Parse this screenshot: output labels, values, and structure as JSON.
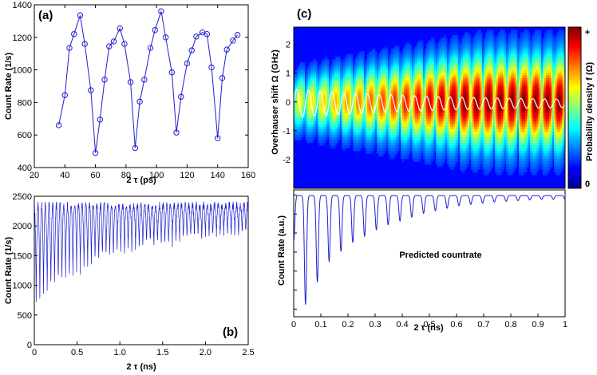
{
  "colors": {
    "series": "#1f1fd0",
    "white_trace": "#ffffff",
    "letter_box": "#ffffff"
  },
  "chart_data": [
    {
      "id": "a",
      "type": "line",
      "panel_label": "(a)",
      "xlabel": "2 τ   (ps)",
      "ylabel": "Count Rate (1/s)",
      "xlim": [
        20,
        160
      ],
      "ylim": [
        400,
        1400
      ],
      "xticks": [
        20,
        40,
        60,
        80,
        100,
        120,
        140,
        160
      ],
      "yticks": [
        400,
        600,
        800,
        1000,
        1200,
        1400
      ],
      "markers": "circle",
      "x": [
        36,
        40,
        43,
        46,
        50,
        53,
        57,
        60,
        63,
        66,
        69,
        72,
        76,
        79,
        83,
        86,
        89,
        92,
        96,
        99,
        103,
        106,
        110,
        113,
        116,
        120,
        123,
        126,
        130,
        133,
        136,
        140,
        143,
        146,
        150,
        153
      ],
      "y": [
        660,
        845,
        1135,
        1220,
        1335,
        1160,
        875,
        490,
        695,
        940,
        1145,
        1175,
        1255,
        1160,
        925,
        520,
        805,
        940,
        1135,
        1245,
        1360,
        1200,
        985,
        615,
        835,
        1040,
        1120,
        1205,
        1230,
        1220,
        1015,
        580,
        950,
        1125,
        1180,
        1215
      ]
    },
    {
      "id": "b",
      "type": "line",
      "panel_label": "(b)",
      "xlabel": "2 τ   (ns)",
      "ylabel": "Count Rate (1/s)",
      "xlim": [
        0,
        2.5
      ],
      "ylim": [
        0,
        2500
      ],
      "xticks": [
        0,
        0.5,
        1.0,
        1.5,
        2.0,
        2.5
      ],
      "xticklabels": [
        "0",
        "0.5",
        "1.0",
        "1.5",
        "2.0",
        "2.5"
      ],
      "yticks": [
        0,
        500,
        1000,
        1500,
        2000,
        2500
      ],
      "model": {
        "description": "dense oscillating count rate: peaks ~2350 1/s, troughs rising from ~600 toward ~1900 1/s as 2τ grows",
        "samples": 1400,
        "peak": 2350,
        "trough_start": 600,
        "trough_end": 1900,
        "trough_decay_ns": 0.85,
        "period_ns": 0.043,
        "noise_amp": 130
      }
    },
    {
      "id": "c-top",
      "type": "heatmap",
      "panel_label": "(c)",
      "ylabel": "Overhauser shift Ω (GHz)",
      "xlim": [
        0,
        1
      ],
      "ylim": [
        -3,
        2.6
      ],
      "yticks": [
        2,
        1,
        0,
        -1,
        -2
      ],
      "yticklabels": [
        "2",
        "1",
        "0",
        "-1",
        "-2"
      ],
      "colormap": "jet",
      "colorbar_label": "Probability density f (Ω)",
      "colorbar_top_label": "+",
      "colorbar_bottom_label": "0",
      "stripes": 23,
      "stripe_period": 0.0435,
      "envelope_width_GHz": [
        0.9,
        1.55
      ],
      "overlay": "white trace: oscillating mean shift, amplitude decays from ~0.4 GHz to ~0.1 GHz around 0"
    },
    {
      "id": "c-bottom",
      "type": "line",
      "xlabel": "2 τ   (ns)",
      "ylabel": "Count Rate (a.u.)",
      "annotation": "Predicted countrate",
      "xlim": [
        0,
        1
      ],
      "xticks": [
        0,
        0.1,
        0.2,
        0.3,
        0.4,
        0.5,
        0.6,
        0.7,
        0.8,
        0.9,
        1.0
      ],
      "xticklabels": [
        "0",
        "0.1",
        "0.2",
        "0.3",
        "0.4",
        "0.5",
        "0.6",
        "0.7",
        "0.8",
        "0.9",
        "1"
      ],
      "ylim": [
        0,
        1
      ],
      "model": {
        "description": "oscillation with dips of decaying depth; first dips ~0.88 deep, later <0.1",
        "baseline": 0.955,
        "period": 0.0435,
        "dip_depths": [
          0.6,
          0.86,
          0.68,
          0.52,
          0.44,
          0.37,
          0.32,
          0.27,
          0.23,
          0.2,
          0.17,
          0.14,
          0.12,
          0.1,
          0.08,
          0.07,
          0.06,
          0.05,
          0.045,
          0.04,
          0.035,
          0.03,
          0.03
        ]
      }
    }
  ]
}
